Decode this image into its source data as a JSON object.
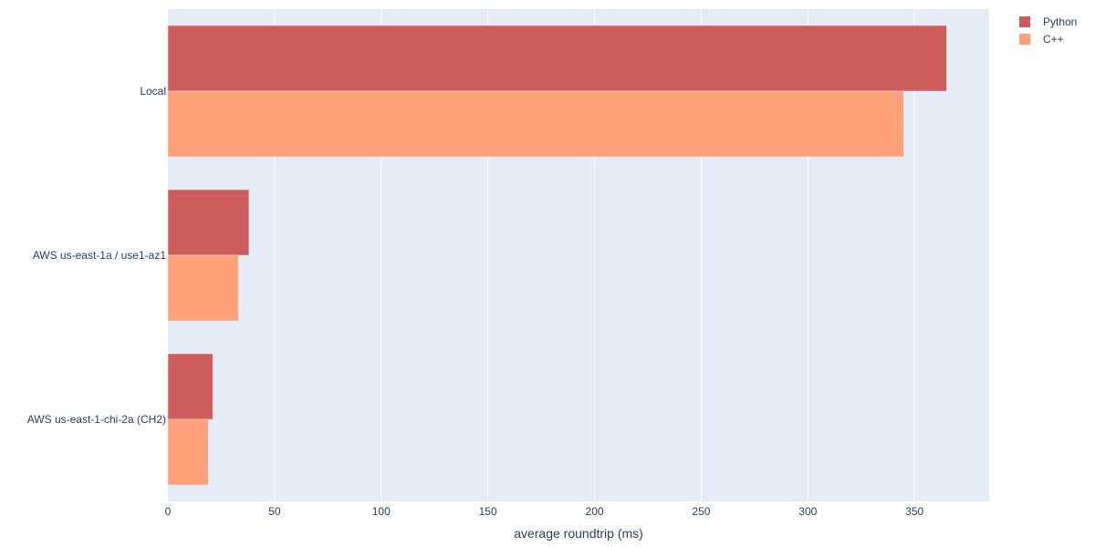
{
  "chart_data": {
    "type": "bar",
    "orientation": "horizontal",
    "categories": [
      "AWS us-east-1-chi-2a (CH2)",
      "AWS us-east-1a / use1-az1",
      "Local"
    ],
    "series": [
      {
        "name": "Python",
        "values": [
          21,
          38,
          365
        ],
        "color": "#cd5c5c"
      },
      {
        "name": "C++",
        "values": [
          19,
          33,
          345
        ],
        "color": "#ffa07a"
      }
    ],
    "xlabel": "average roundtrip (ms)",
    "ylabel": "",
    "xlim": [
      0,
      385
    ],
    "xticks": [
      0,
      50,
      100,
      150,
      200,
      250,
      300,
      350
    ],
    "grid": true,
    "legend_position": "top-right",
    "plot_background": "#e5ecf6",
    "text_color": "#2a3f5f"
  }
}
